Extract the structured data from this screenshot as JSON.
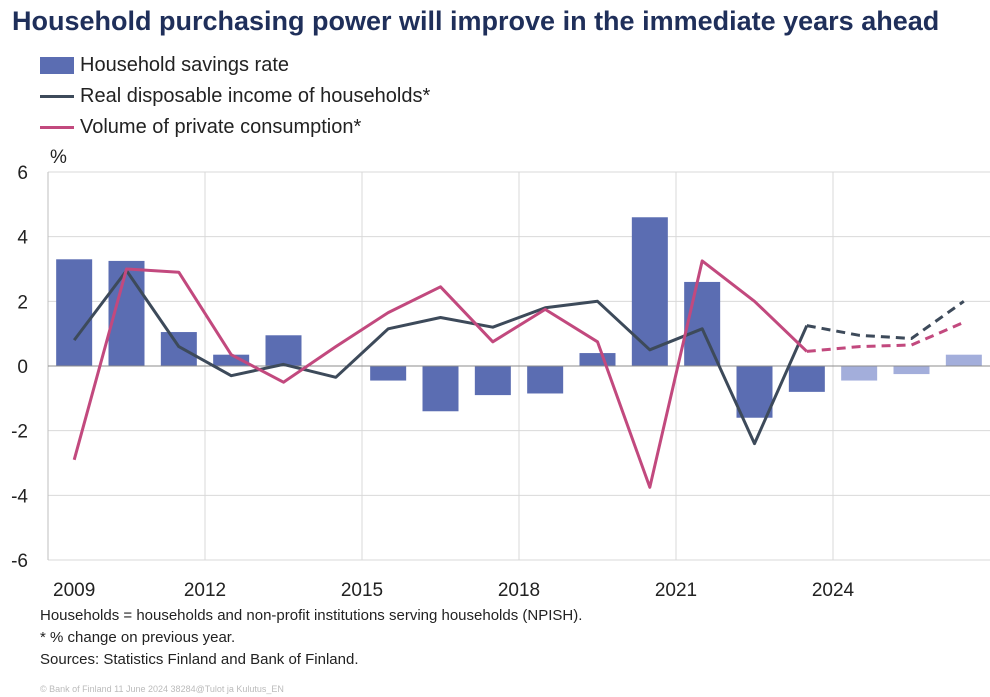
{
  "title": "Household purchasing power will improve in the immediate years ahead",
  "legend": {
    "savings": "Household savings rate",
    "income": "Real disposable income of households*",
    "consumption": "Volume of private consumption*"
  },
  "footnotes": [
    "Households = households and non-profit institutions serving households (NPISH).",
    "* % change on previous year.",
    "Sources: Statistics Finland and Bank of Finland."
  ],
  "copyright": "© Bank of Finland 11 June 2024 38284@Tulot ja Kulutus_EN",
  "colors": {
    "bar": "#5b6db2",
    "bar_forecast": "#a3aedb",
    "income": "#3d4a5a",
    "consumption": "#c2497e",
    "grid": "#d9d9d9"
  },
  "chart_data": {
    "type": "bar+line",
    "ylabel": "%",
    "ylim": [
      -6,
      6
    ],
    "yticks": [
      6,
      4,
      2,
      0,
      -2,
      -4,
      -6
    ],
    "xticks": [
      "2009",
      "2012",
      "2015",
      "2018",
      "2021",
      "2024"
    ],
    "x": [
      2009,
      2010,
      2011,
      2012,
      2013,
      2014,
      2015,
      2016,
      2017,
      2018,
      2019,
      2020,
      2021,
      2022,
      2023,
      2024,
      2025,
      2026
    ],
    "forecast_from": 2024,
    "series": [
      {
        "name": "Household savings rate",
        "kind": "bar",
        "values": [
          3.3,
          3.25,
          1.05,
          0.35,
          0.95,
          null,
          -0.45,
          -1.4,
          -0.9,
          -0.85,
          0.4,
          4.6,
          2.6,
          -1.6,
          -0.8,
          -0.45,
          -0.25,
          0.35
        ]
      },
      {
        "name": "Real disposable income of households*",
        "kind": "line",
        "values": [
          0.8,
          2.95,
          0.6,
          -0.3,
          0.05,
          -0.35,
          1.15,
          1.5,
          1.2,
          1.8,
          2.0,
          0.5,
          1.15,
          -2.4,
          1.25,
          0.95,
          0.85,
          2.0
        ]
      },
      {
        "name": "Volume of private consumption*",
        "kind": "line",
        "values": [
          -2.9,
          3.0,
          2.9,
          0.35,
          -0.5,
          0.6,
          1.65,
          2.45,
          0.75,
          1.75,
          0.75,
          -3.75,
          3.25,
          2.0,
          0.45,
          0.6,
          0.65,
          1.35
        ]
      }
    ]
  }
}
